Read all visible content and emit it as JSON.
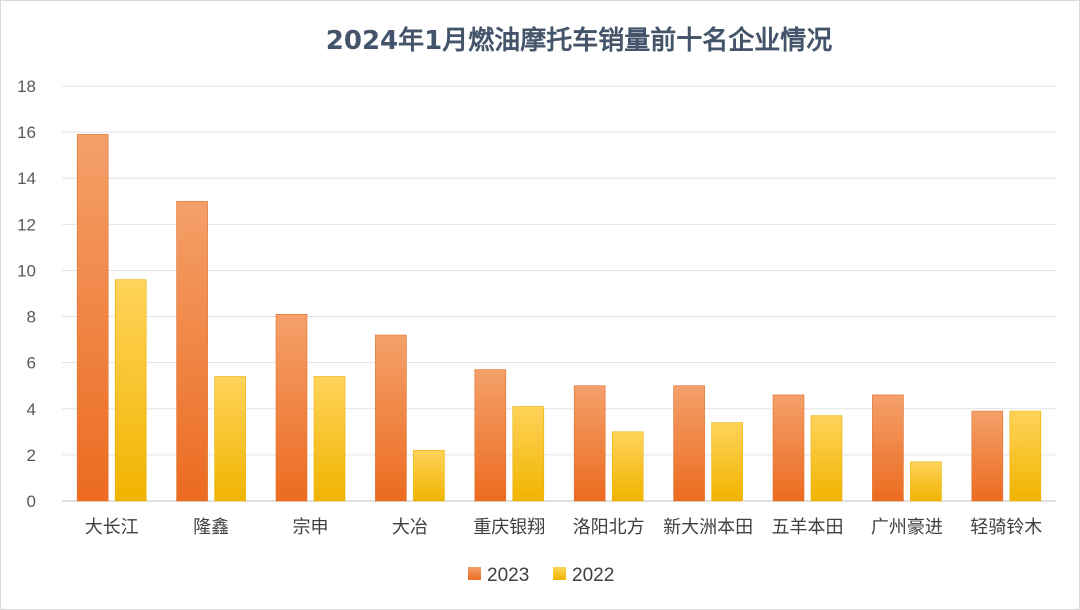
{
  "chart_data": {
    "type": "bar",
    "title": "2024年1月燃油摩托车销量前十名企业情况",
    "xlabel": "",
    "ylabel": "",
    "categories": [
      "大长江",
      "隆鑫",
      "宗申",
      "大冶",
      "重庆银翔",
      "洛阳北方",
      "新大洲本田",
      "五羊本田",
      "广州豪进",
      "轻骑铃木"
    ],
    "series": [
      {
        "name": "2023",
        "values": [
          15.9,
          13.0,
          8.1,
          7.2,
          5.7,
          5.0,
          5.0,
          4.6,
          4.6,
          3.9
        ],
        "color": "#ed7d31"
      },
      {
        "name": "2022",
        "values": [
          9.6,
          5.4,
          5.4,
          2.2,
          4.1,
          3.0,
          3.4,
          3.7,
          1.7,
          3.9
        ],
        "color": "#ffc000"
      }
    ],
    "ylim": [
      0,
      18
    ],
    "yticks": [
      0,
      2,
      4,
      6,
      8,
      10,
      12,
      14,
      16,
      18
    ],
    "grid": true,
    "legend_position": "bottom"
  }
}
